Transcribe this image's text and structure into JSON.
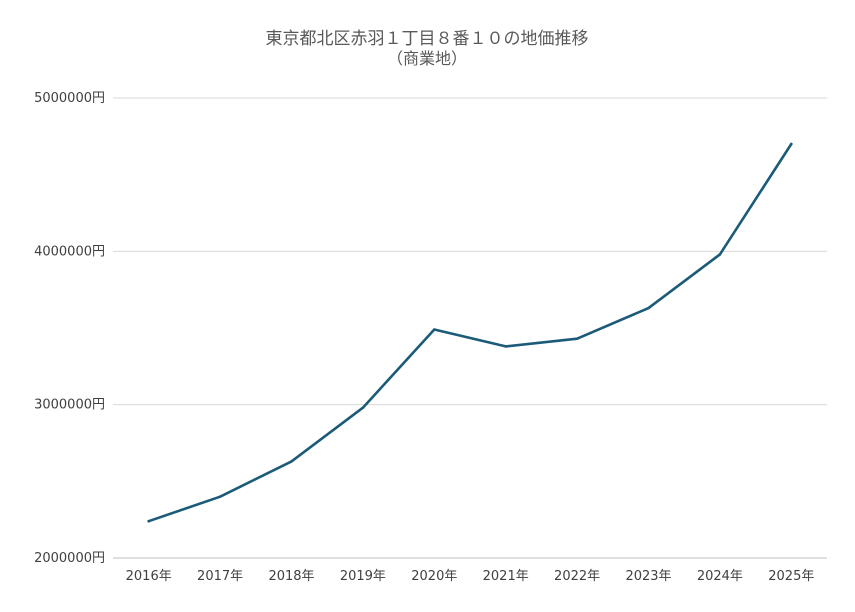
{
  "chart_data": {
    "type": "line",
    "title": "東京都北区赤羽１丁目８番１０の地価推移",
    "subtitle": "（商業地）",
    "categories": [
      "2016年",
      "2017年",
      "2018年",
      "2019年",
      "2020年",
      "2021年",
      "2022年",
      "2023年",
      "2024年",
      "2025年"
    ],
    "series": [
      {
        "values": [
          2240000,
          2400000,
          2630000,
          2980000,
          3490000,
          3380000,
          3430000,
          3630000,
          3980000,
          4700000
        ],
        "color": "#1b5b79"
      }
    ],
    "ylim": [
      2000000,
      5000000
    ],
    "yticks": [
      2000000,
      3000000,
      4000000,
      5000000
    ],
    "ytick_labels": [
      "2000000円",
      "3000000円",
      "4000000円",
      "5000000円"
    ],
    "grid": true,
    "legend": "none"
  }
}
